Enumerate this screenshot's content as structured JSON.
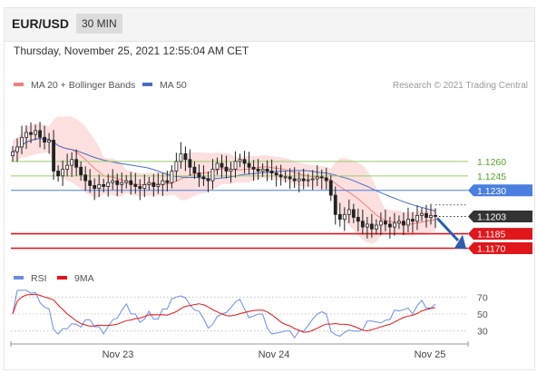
{
  "header": {
    "symbol": "EUR/USD",
    "timeframe": "30 MIN"
  },
  "datetime": "Thursday, November 25, 2021 12:55:04 AM CET",
  "copyright": "Research © 2021 Trading Central",
  "colors": {
    "price": "#333333",
    "bands": "#f5c0c0",
    "ma20": "#f08080",
    "ma50": "#4a6fc0",
    "green": "#9acd6a",
    "blue": "#4a7ee0",
    "red": "#e0161b",
    "rsi": "#6b8de0",
    "rsi9": "#e0161b",
    "dark": "#333333"
  },
  "chart_data": [
    {
      "type": "candlestick",
      "legend": [
        {
          "name": "MA 20 + Bollinger Bands",
          "color": "#f08080"
        },
        {
          "name": "MA 50",
          "color": "#4a6fc0"
        }
      ],
      "x_labels": [
        "Nov 23",
        "Nov 24",
        "Nov 25"
      ],
      "ylim": [
        1.1162,
        1.1322
      ],
      "levels": [
        {
          "label": "1.1260",
          "value": 1.126,
          "kind": "green"
        },
        {
          "label": "1.1245",
          "value": 1.1245,
          "kind": "green"
        },
        {
          "label": "1.1230",
          "value": 1.123,
          "kind": "blue"
        },
        {
          "label": "1.1203",
          "value": 1.1203,
          "kind": "dark"
        },
        {
          "label": "1.1185",
          "value": 1.1185,
          "kind": "red"
        },
        {
          "label": "1.1170",
          "value": 1.117,
          "kind": "red"
        }
      ],
      "close": [
        1.127,
        1.1275,
        1.1285,
        1.129,
        1.1288,
        1.1292,
        1.1285,
        1.128,
        1.1282,
        1.125,
        1.1245,
        1.1252,
        1.1256,
        1.1262,
        1.1254,
        1.1246,
        1.124,
        1.1235,
        1.1232,
        1.1236,
        1.1234,
        1.1238,
        1.124,
        1.1236,
        1.1238,
        1.124,
        1.1236,
        1.1234,
        1.1232,
        1.1236,
        1.1238,
        1.1234,
        1.1236,
        1.124,
        1.1238,
        1.125,
        1.126,
        1.1268,
        1.1262,
        1.1254,
        1.1248,
        1.1244,
        1.1242,
        1.124,
        1.1252,
        1.1258,
        1.1254,
        1.125,
        1.1252,
        1.126,
        1.1262,
        1.1258,
        1.1254,
        1.1252,
        1.125,
        1.1252,
        1.125,
        1.1248,
        1.1246,
        1.1244,
        1.1244,
        1.1242,
        1.124,
        1.1242,
        1.124,
        1.1241,
        1.1242,
        1.1244,
        1.1243,
        1.124,
        1.1225,
        1.1205,
        1.12,
        1.1205,
        1.121,
        1.1202,
        1.1198,
        1.1192,
        1.1195,
        1.119,
        1.1194,
        1.1198,
        1.1195,
        1.1192,
        1.1196,
        1.1198,
        1.1194,
        1.12,
        1.1198,
        1.1204,
        1.1206,
        1.1202,
        1.1204,
        1.1203
      ]
    },
    {
      "type": "line",
      "legend": [
        {
          "name": "RSI",
          "color": "#6b8de0"
        },
        {
          "name": "9MA",
          "color": "#e0161b"
        }
      ],
      "ylim": [
        20,
        80
      ],
      "levels": [
        {
          "label": "70",
          "value": 70
        },
        {
          "label": "50",
          "value": 50
        },
        {
          "label": "30",
          "value": 30
        }
      ]
    }
  ]
}
